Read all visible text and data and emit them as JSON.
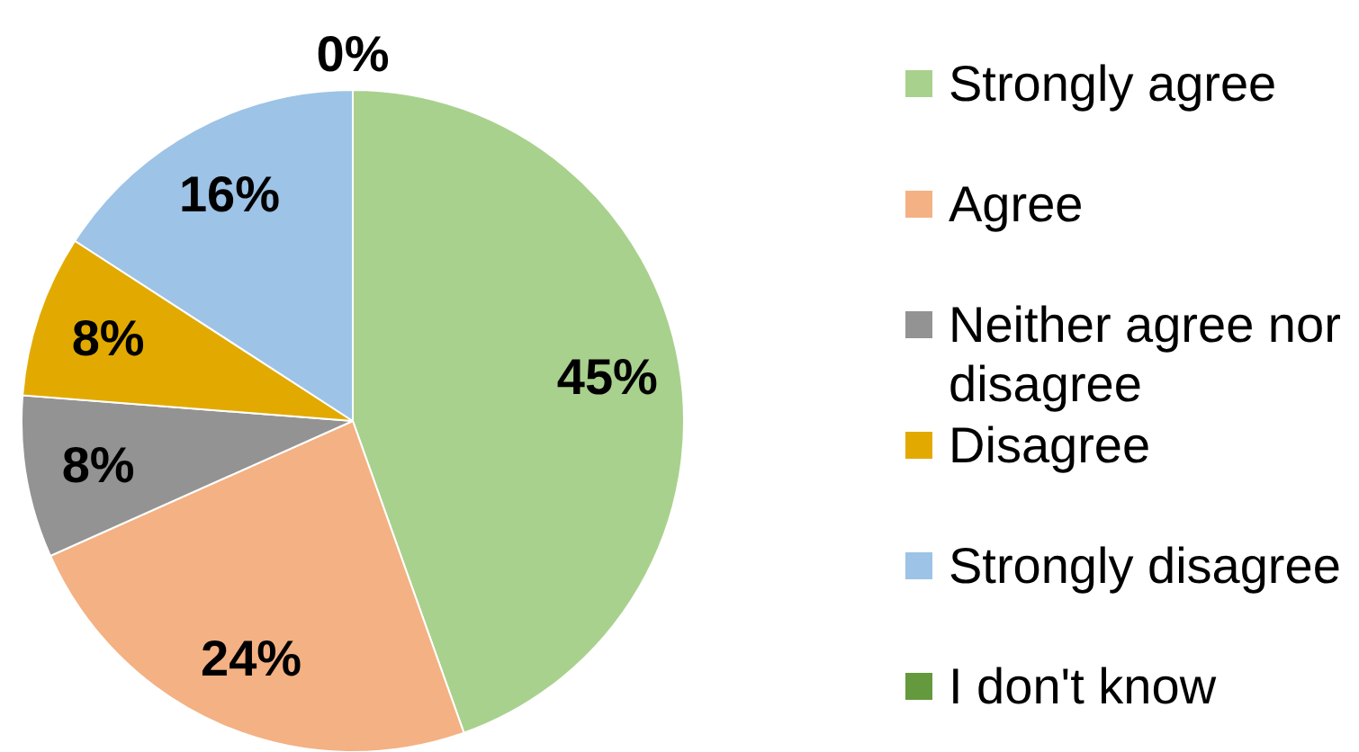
{
  "chart_data": {
    "type": "pie",
    "categories": [
      "Strongly agree",
      "Agree",
      "Neither agree nor disagree",
      "Disagree",
      "Strongly disagree",
      "I don't know"
    ],
    "values": [
      45,
      24,
      8,
      8,
      16,
      0
    ],
    "colors": [
      "#a9d18e",
      "#f4b183",
      "#939393",
      "#e2aa00",
      "#9dc3e6",
      "#64993d"
    ],
    "value_labels": [
      "45%",
      "24%",
      "8%",
      "8%",
      "16%",
      "0%"
    ],
    "legend": "right"
  }
}
